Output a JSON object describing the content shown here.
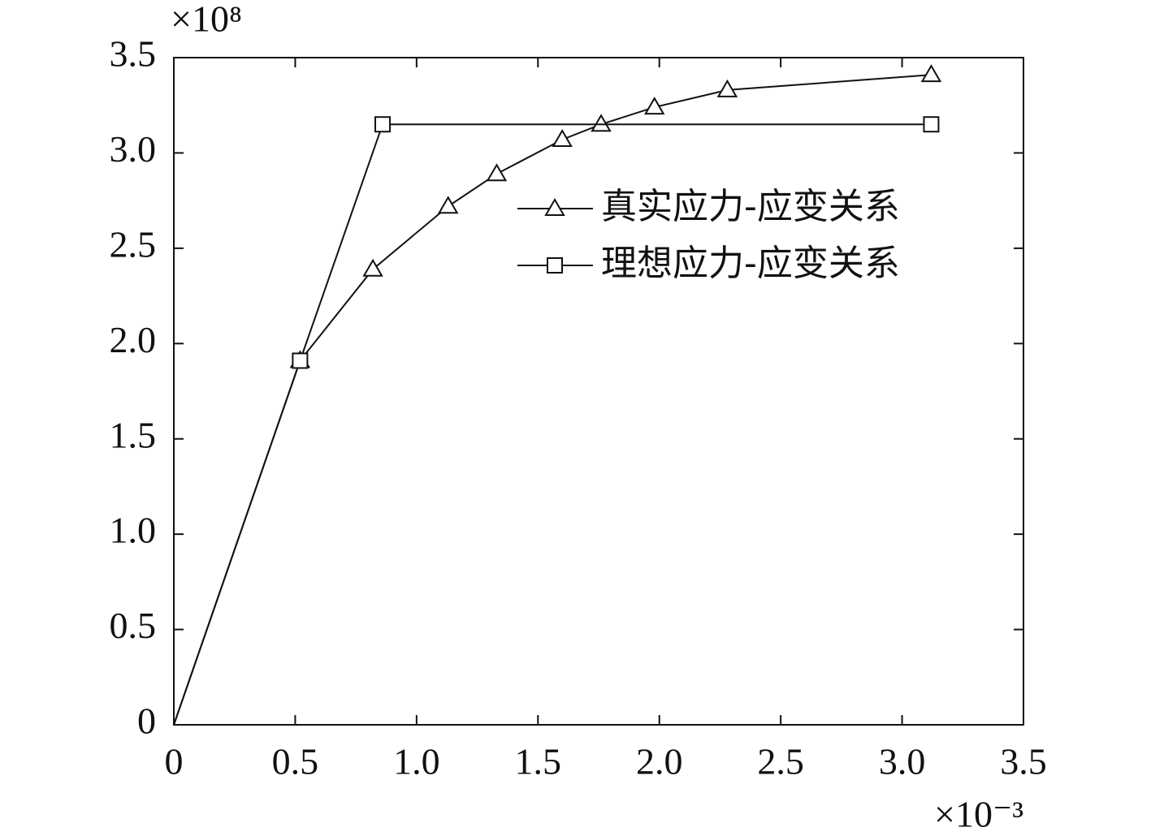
{
  "chart_data": {
    "type": "line",
    "x_scale_label": "×10⁻³",
    "y_scale_label": "×10⁸",
    "xlim": [
      0,
      3.5
    ],
    "ylim": [
      0,
      3.5
    ],
    "xticks": [
      0,
      0.5,
      {
        "value": 1,
        "label": "1.0"
      },
      1.5,
      {
        "value": 2,
        "label": "2.0"
      },
      2.5,
      {
        "value": 3,
        "label": "3.0"
      },
      3.5
    ],
    "yticks": [
      0,
      0.5,
      {
        "value": 1,
        "label": "1.0"
      },
      1.5,
      {
        "value": 2,
        "label": "2.0"
      },
      2.5,
      {
        "value": 3,
        "label": "3.0"
      },
      3.5
    ],
    "legend": "upper right",
    "series": [
      {
        "name": "真实应力-应变关系",
        "color": "#111111",
        "marker": "triangle",
        "x": [
          0,
          0.52,
          0.82,
          1.13,
          1.33,
          1.6,
          1.76,
          1.98,
          2.28,
          3.12
        ],
        "values": [
          0,
          1.91,
          2.39,
          2.72,
          2.89,
          3.07,
          3.15,
          3.24,
          3.33,
          3.41
        ]
      },
      {
        "name": "理想应力-应变关系",
        "color": "#111111",
        "marker": "square",
        "x": [
          0,
          0.52,
          0.86,
          3.12
        ],
        "values": [
          0,
          1.91,
          3.15,
          3.15
        ]
      }
    ]
  }
}
